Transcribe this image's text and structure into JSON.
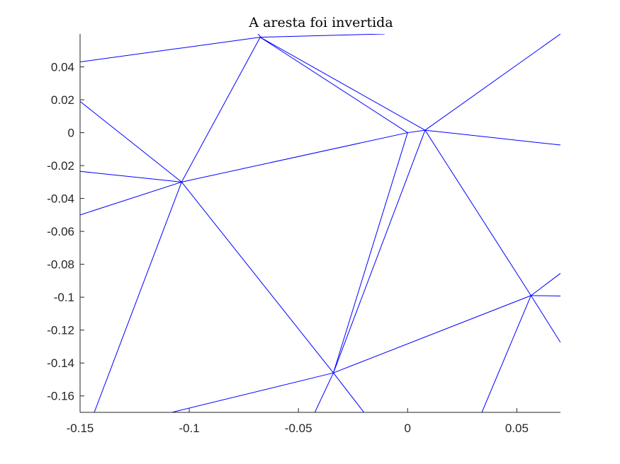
{
  "chart_data": {
    "type": "line",
    "title": "A aresta foi invertida",
    "xlabel": "",
    "ylabel": "",
    "xlim": [
      -0.15,
      0.07
    ],
    "ylim": [
      -0.17,
      0.06
    ],
    "grid": false,
    "line_color": "#0000ff",
    "x_ticks": [
      -0.15,
      -0.1,
      -0.05,
      0,
      0.05
    ],
    "x_tick_labels": [
      "-0.15",
      "-0.1",
      "-0.05",
      "0",
      "0.05"
    ],
    "y_ticks": [
      0.04,
      0.02,
      0,
      -0.02,
      -0.04,
      -0.06,
      -0.08,
      -0.1,
      -0.12,
      -0.14,
      -0.16
    ],
    "y_tick_labels": [
      "0.04",
      "0.02",
      "0",
      "-0.02",
      "-0.04",
      "-0.06",
      "-0.08",
      "-0.1",
      "-0.12",
      "-0.14",
      "-0.16"
    ],
    "segments": [
      [
        [
          -0.15,
          0.043
        ],
        [
          -0.0675,
          0.058
        ]
      ],
      [
        [
          -0.0675,
          0.058
        ],
        [
          -0.0105,
          0.06
        ]
      ],
      [
        [
          -0.0685,
          0.06
        ],
        [
          -0.0665,
          0.057
        ]
      ],
      [
        [
          -0.0675,
          0.058
        ],
        [
          -0.1035,
          -0.03
        ]
      ],
      [
        [
          -0.0675,
          0.058
        ],
        [
          0.0,
          0.0
        ]
      ],
      [
        [
          -0.0675,
          0.058
        ],
        [
          0.008,
          0.0015
        ]
      ],
      [
        [
          -0.15,
          0.019
        ],
        [
          -0.1035,
          -0.03
        ]
      ],
      [
        [
          -0.15,
          -0.0235
        ],
        [
          -0.1035,
          -0.03
        ]
      ],
      [
        [
          -0.15,
          -0.05
        ],
        [
          -0.1035,
          -0.03
        ]
      ],
      [
        [
          -0.1035,
          -0.03
        ],
        [
          0.0,
          0.0
        ]
      ],
      [
        [
          -0.1035,
          -0.03
        ],
        [
          -0.1435,
          -0.17
        ]
      ],
      [
        [
          -0.1035,
          -0.03
        ],
        [
          -0.034,
          -0.146
        ]
      ],
      [
        [
          0.0,
          0.0
        ],
        [
          0.008,
          0.0015
        ]
      ],
      [
        [
          0.0,
          0.0
        ],
        [
          -0.034,
          -0.146
        ]
      ],
      [
        [
          0.008,
          0.0015
        ],
        [
          -0.034,
          -0.146
        ]
      ],
      [
        [
          0.008,
          0.0015
        ],
        [
          0.07,
          0.06
        ]
      ],
      [
        [
          0.008,
          0.0015
        ],
        [
          0.07,
          -0.0075
        ]
      ],
      [
        [
          0.008,
          0.0015
        ],
        [
          0.0565,
          -0.099
        ]
      ],
      [
        [
          -0.034,
          -0.146
        ],
        [
          0.0565,
          -0.099
        ]
      ],
      [
        [
          -0.034,
          -0.146
        ],
        [
          -0.108,
          -0.17
        ]
      ],
      [
        [
          -0.034,
          -0.146
        ],
        [
          -0.0425,
          -0.17
        ]
      ],
      [
        [
          -0.034,
          -0.146
        ],
        [
          -0.02,
          -0.17
        ]
      ],
      [
        [
          0.0565,
          -0.099
        ],
        [
          0.07,
          -0.0855
        ]
      ],
      [
        [
          0.0565,
          -0.099
        ],
        [
          0.07,
          -0.0993
        ]
      ],
      [
        [
          0.0565,
          -0.099
        ],
        [
          0.07,
          -0.1275
        ]
      ],
      [
        [
          0.0565,
          -0.099
        ],
        [
          0.034,
          -0.17
        ]
      ]
    ]
  }
}
